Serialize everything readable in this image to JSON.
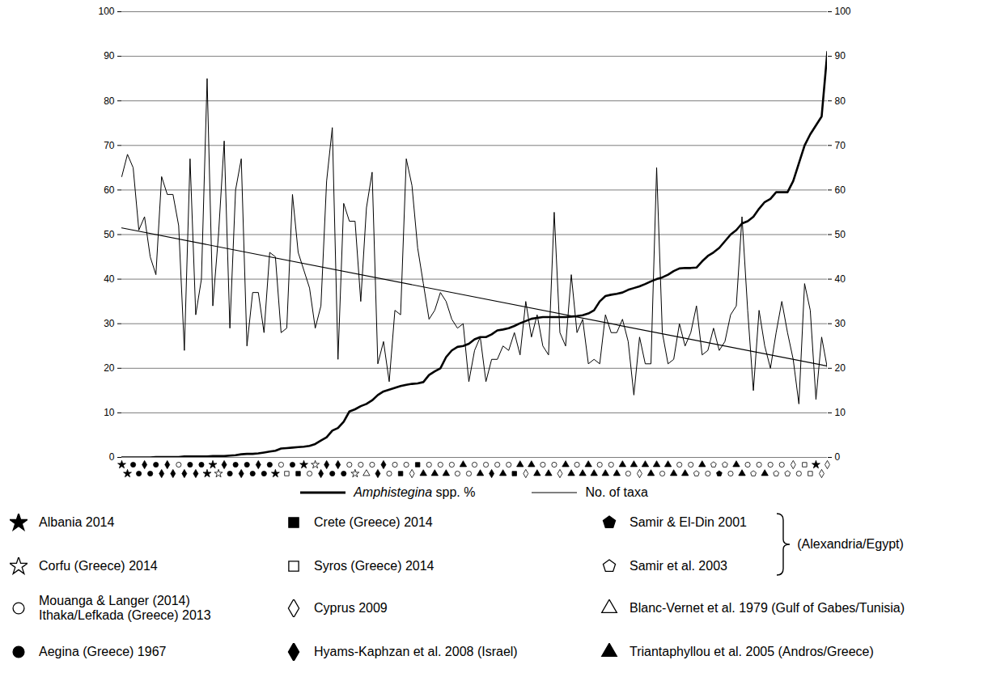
{
  "chart_data": {
    "type": "line",
    "x": [
      1,
      2,
      3,
      4,
      5,
      6,
      7,
      8,
      9,
      10,
      11,
      12,
      13,
      14,
      15,
      16,
      17,
      18,
      19,
      20,
      21,
      22,
      23,
      24,
      25,
      26,
      27,
      28,
      29,
      30,
      31,
      32,
      33,
      34,
      35,
      36,
      37,
      38,
      39,
      40,
      41,
      42,
      43,
      44,
      45,
      46,
      47,
      48,
      49,
      50,
      51,
      52,
      53,
      54,
      55,
      56,
      57,
      58,
      59,
      60,
      61,
      62,
      63,
      64,
      65,
      66,
      67,
      68,
      69,
      70,
      71,
      72,
      73,
      74,
      75,
      76,
      77,
      78,
      79,
      80,
      81,
      82,
      83,
      84,
      85,
      86,
      87,
      88,
      89,
      90,
      91,
      92,
      93,
      94,
      95,
      96,
      97,
      98,
      99,
      100,
      101,
      102,
      103,
      104,
      105,
      106,
      107,
      108,
      109,
      110,
      111,
      112,
      113,
      114,
      115,
      116,
      117,
      118,
      119,
      120,
      121,
      122,
      123,
      124,
      125
    ],
    "xlim": [
      1,
      125
    ],
    "ylim": [
      0,
      100
    ],
    "yticks": [
      0,
      10,
      20,
      30,
      40,
      50,
      60,
      70,
      80,
      90,
      100
    ],
    "y2lim": [
      0,
      100
    ],
    "y2ticks": [
      0,
      10,
      20,
      30,
      40,
      50,
      60,
      70,
      80,
      90,
      100
    ],
    "grid": true,
    "tick_labels": "y",
    "series": [
      {
        "name": "Amphistegina spp. %",
        "color": "#000000",
        "line_style": "thick",
        "values": [
          0,
          0,
          0,
          0,
          0,
          0,
          0.1,
          0.1,
          0.1,
          0.1,
          0.1,
          0.2,
          0.2,
          0.2,
          0.2,
          0.2,
          0.3,
          0.3,
          0.3,
          0.4,
          0.5,
          0.7,
          0.8,
          0.8,
          0.9,
          1.1,
          1.3,
          1.5,
          2.0,
          2.1,
          2.2,
          2.3,
          2.4,
          2.6,
          3.0,
          3.8,
          4.5,
          6.0,
          6.6,
          8.0,
          10.3,
          10.8,
          11.5,
          12.0,
          12.8,
          14.0,
          14.8,
          15.2,
          15.6,
          16.0,
          16.3,
          16.5,
          16.6,
          16.9,
          18.5,
          19.3,
          20.0,
          22.5,
          24.0,
          24.8,
          25.0,
          25.5,
          26.5,
          27.0,
          27.0,
          27.6,
          28.5,
          28.7,
          29.0,
          29.5,
          30.1,
          30.6,
          31.1,
          31.3,
          31.5,
          31.5,
          31.5,
          31.5,
          31.5,
          31.6,
          31.7,
          31.9,
          32.3,
          33.0,
          35.0,
          36.2,
          36.5,
          36.7,
          37.0,
          37.6,
          38.0,
          38.4,
          38.9,
          39.5,
          40.0,
          40.4,
          41.0,
          41.8,
          42.4,
          42.5,
          42.5,
          42.6,
          44.0,
          45.2,
          46.0,
          47.0,
          48.5,
          50.0,
          51.0,
          52.5,
          53.0,
          54.0,
          55.8,
          57.3,
          58.0,
          59.5,
          59.5,
          59.5,
          62.0,
          66.0,
          70.0,
          72.5,
          74.5,
          76.5,
          91.0
        ]
      },
      {
        "name": "No. of taxa",
        "color": "#000000",
        "line_style": "thin",
        "values": [
          63,
          68,
          65,
          51,
          54,
          45,
          41,
          63,
          59,
          59,
          52,
          24,
          67,
          32,
          40,
          85,
          34,
          50,
          71,
          29,
          60,
          67,
          25,
          37,
          37,
          28,
          46,
          45,
          28,
          29,
          59,
          46,
          42,
          38,
          29,
          34,
          62,
          74,
          22,
          57,
          53,
          53,
          35,
          56,
          64,
          21,
          26,
          17,
          33,
          32,
          67,
          61,
          47,
          39,
          31,
          33,
          37,
          35,
          31,
          29,
          30,
          17,
          24,
          27,
          17,
          22,
          22,
          25,
          24,
          28,
          23,
          35,
          27,
          32,
          25,
          23,
          55,
          28,
          25,
          41,
          28,
          31,
          21,
          22,
          21,
          32,
          28,
          28,
          31,
          26,
          14,
          27,
          21,
          21,
          65,
          28,
          21,
          22,
          30,
          25,
          28,
          34,
          23,
          24,
          29,
          24,
          26,
          32,
          34,
          54,
          33,
          15,
          33,
          25,
          20,
          28,
          35,
          28,
          22,
          12,
          39,
          33,
          13,
          27,
          20
        ]
      }
    ],
    "trend_line": {
      "color": "#000000",
      "values": [
        51.5,
        20.5
      ]
    },
    "sources": [
      {
        "label": "Albania 2014",
        "marker": "star",
        "fill": "filled"
      },
      {
        "label": "Corfu (Greece) 2014",
        "marker": "star",
        "fill": "open"
      },
      {
        "label": "Mouanga & Langer (2014)\nIthaka/Lefkada (Greece) 2013",
        "marker": "circle",
        "fill": "open"
      },
      {
        "label": "Aegina (Greece) 1967",
        "marker": "circle",
        "fill": "filled"
      },
      {
        "label": "Crete (Greece) 2014",
        "marker": "square",
        "fill": "filled"
      },
      {
        "label": "Syros (Greece) 2014",
        "marker": "square",
        "fill": "open"
      },
      {
        "label": "Cyprus 2009",
        "marker": "diamond",
        "fill": "open"
      },
      {
        "label": "Hyams-Kaphzan et al. 2008 (Israel)",
        "marker": "diamond",
        "fill": "filled"
      },
      {
        "label": "Samir & El-Din 2001",
        "marker": "pentagon",
        "fill": "filled"
      },
      {
        "label": "Samir et al. 2003",
        "marker": "pentagon",
        "fill": "open"
      },
      {
        "label": "Blanc-Vernet et al. 1979 (Gulf of Gabes/Tunisia)",
        "marker": "triangle",
        "fill": "open"
      },
      {
        "label": "Triantaphyllou et al. 2005 (Andros/Greece)",
        "marker": "triangle",
        "fill": "filled"
      }
    ],
    "source_groups": [
      {
        "label": "(Alexandria/Egypt)",
        "members": [
          8,
          9
        ]
      }
    ],
    "sample_sources": [
      0,
      0,
      3,
      3,
      7,
      3,
      3,
      7,
      7,
      7,
      2,
      7,
      3,
      7,
      3,
      0,
      0,
      1,
      7,
      3,
      3,
      7,
      3,
      3,
      7,
      3,
      3,
      0,
      2,
      5,
      3,
      4,
      0,
      2,
      1,
      7,
      7,
      3,
      7,
      3,
      2,
      1,
      2,
      10,
      2,
      7,
      7,
      2,
      2,
      4,
      2,
      6,
      4,
      11,
      2,
      11,
      2,
      11,
      2,
      2,
      11,
      2,
      2,
      11,
      2,
      7,
      2,
      11,
      2,
      4,
      11,
      6,
      11,
      11,
      2,
      11,
      2,
      6,
      11,
      11,
      2,
      11,
      11,
      11,
      2,
      11,
      2,
      11,
      11,
      2,
      11,
      6,
      11,
      11,
      11,
      2,
      11,
      11,
      2,
      11,
      2,
      9,
      11,
      2,
      9,
      8,
      9,
      2,
      11,
      11,
      2,
      9,
      2,
      11,
      2,
      9,
      2,
      9,
      6,
      2,
      5,
      5,
      0,
      6,
      6
    ]
  }
}
